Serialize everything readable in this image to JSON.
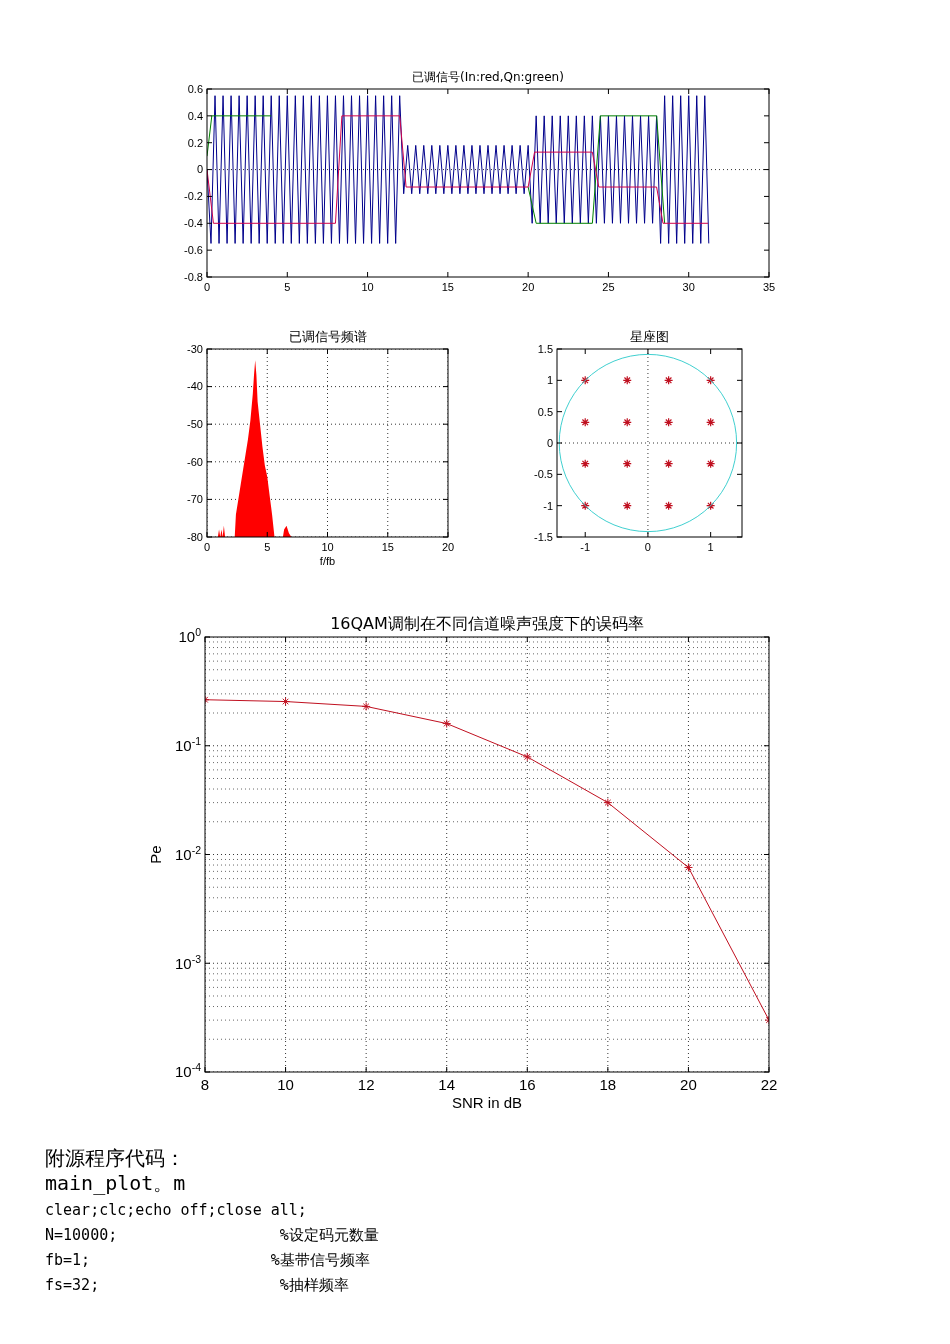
{
  "chart_data": [
    {
      "type": "line",
      "title": "已调信号(In:red,Qn:green)",
      "xlim": [
        0,
        35
      ],
      "xticks": [
        0,
        5,
        10,
        15,
        20,
        25,
        30,
        35
      ],
      "ylim": [
        -0.8,
        0.6
      ],
      "yticks": [
        -0.8,
        -0.6,
        -0.4,
        -0.2,
        0,
        0.2,
        0.4,
        0.6
      ],
      "ref_lines": [
        {
          "axis": "y",
          "value": 0,
          "line_style": "dotted",
          "color": "#000000"
        }
      ],
      "series": [
        {
          "color": "#00008b",
          "x": [
            0,
            0.25,
            0.5,
            0.75,
            1,
            1.25,
            1.5,
            1.75,
            2,
            2.25,
            2.5,
            2.75,
            3,
            3.25,
            3.5,
            3.75,
            4,
            4.25,
            4.5,
            4.75,
            5,
            5.25,
            5.5,
            5.75,
            6,
            6.25,
            6.5,
            6.75,
            7,
            7.25,
            7.5,
            7.75,
            8,
            8.25,
            8.5,
            8.75,
            9,
            9.25,
            9.5,
            9.75,
            10,
            10.25,
            10.5,
            10.75,
            11,
            11.25,
            11.5,
            11.75,
            12,
            12.25,
            12.5,
            12.75,
            13,
            13.25,
            13.5,
            13.75,
            14,
            14.25,
            14.5,
            14.75,
            15,
            15.25,
            15.5,
            15.75,
            16,
            16.25,
            16.5,
            16.75,
            17,
            17.25,
            17.5,
            17.75,
            18,
            18.25,
            18.5,
            18.75,
            19,
            19.25,
            19.5,
            19.75,
            20,
            20.25,
            20.5,
            20.75,
            21,
            21.25,
            21.5,
            21.75,
            22,
            22.25,
            22.5,
            22.75,
            23,
            23.25,
            23.5,
            23.75,
            24,
            24.25,
            24.5,
            24.75,
            25,
            25.25,
            25.5,
            25.75,
            26,
            26.25,
            26.5,
            26.75,
            27,
            27.25,
            27.5,
            27.75,
            28,
            28.25,
            28.5,
            28.75,
            29,
            29.25,
            29.5,
            29.75,
            30,
            30.25,
            30.5,
            30.75,
            31,
            31.25
          ],
          "values": [
            0,
            -0.55,
            0.55,
            -0.55,
            0.55,
            -0.55,
            0.55,
            -0.55,
            0.55,
            -0.55,
            0.55,
            -0.55,
            0.55,
            -0.55,
            0.55,
            -0.55,
            0.55,
            -0.55,
            0.55,
            -0.55,
            0.55,
            -0.55,
            0.55,
            -0.55,
            0.55,
            -0.55,
            0.55,
            -0.55,
            0.55,
            -0.55,
            0.55,
            -0.55,
            0.55,
            -0.55,
            0.55,
            -0.55,
            0.55,
            -0.55,
            0.55,
            -0.55,
            0.55,
            -0.55,
            0.55,
            -0.55,
            0.55,
            -0.55,
            0.55,
            -0.55,
            0.55,
            -0.18,
            0.18,
            -0.18,
            0.18,
            -0.18,
            0.18,
            -0.18,
            0.18,
            -0.18,
            0.18,
            -0.18,
            0.18,
            -0.18,
            0.18,
            -0.18,
            0.18,
            -0.18,
            0.18,
            -0.18,
            0.18,
            -0.18,
            0.18,
            -0.18,
            0.18,
            -0.18,
            0.18,
            -0.18,
            0.18,
            -0.18,
            0.18,
            -0.18,
            0.18,
            -0.4,
            0.4,
            -0.4,
            0.4,
            -0.4,
            0.4,
            -0.4,
            0.4,
            -0.4,
            0.4,
            -0.4,
            0.4,
            -0.4,
            0.4,
            -0.4,
            0.4,
            -0.4,
            0.4,
            -0.4,
            0.4,
            -0.4,
            0.4,
            -0.4,
            0.4,
            -0.4,
            0.4,
            -0.4,
            0.4,
            -0.4,
            0.4,
            -0.4,
            0.4,
            -0.55,
            0.55,
            -0.55,
            0.55,
            -0.55,
            0.55,
            -0.55,
            0.55,
            -0.55,
            0.55,
            -0.55,
            0.55,
            -0.55
          ]
        },
        {
          "color": "#008000",
          "x": [
            0,
            0.3,
            4.0,
            4.2,
            12.2,
            20.0,
            20.5,
            24.0,
            24.5,
            28.0,
            28.5
          ],
          "values": [
            0.1,
            0.4,
            0.4,
            null,
            null,
            -0.13,
            -0.4,
            -0.4,
            0.4,
            0.4,
            -0.4
          ]
        },
        {
          "color": "#d0004a",
          "x": [
            0,
            0.4,
            8.0,
            8.4,
            12.0,
            12.4,
            20.0,
            20.4,
            24.0,
            24.4,
            28.0,
            28.4,
            31.2
          ],
          "values": [
            0,
            -0.4,
            -0.4,
            0.4,
            0.4,
            -0.13,
            -0.13,
            0.13,
            0.13,
            -0.13,
            -0.13,
            -0.4,
            -0.4
          ]
        }
      ]
    },
    {
      "type": "area",
      "title": "已调信号频谱",
      "xlabel": "f/fb",
      "xlim": [
        0,
        20
      ],
      "xticks": [
        0,
        5,
        10,
        15,
        20
      ],
      "ylim": [
        -80,
        -30
      ],
      "yticks": [
        -80,
        -70,
        -60,
        -50,
        -40,
        -30
      ],
      "grid": true,
      "color": "#ff0000",
      "x": [
        0.9,
        1.0,
        1.1,
        1.2,
        1.3,
        1.4,
        1.5,
        1.6,
        2.3,
        2.4,
        2.6,
        2.8,
        3.0,
        3.2,
        3.4,
        3.6,
        3.8,
        3.9,
        4.0,
        4.1,
        4.2,
        4.4,
        4.6,
        4.8,
        5.0,
        5.2,
        5.4,
        5.6,
        6.3,
        6.4,
        6.6,
        6.8,
        7.0
      ],
      "values": [
        -80,
        -78,
        -80,
        -78,
        -80,
        -77,
        -80,
        -80,
        -80,
        -74,
        -70,
        -66,
        -62,
        -58,
        -54,
        -49,
        -42,
        -37,
        -33,
        -37,
        -44,
        -50,
        -56,
        -61,
        -64,
        -69,
        -74,
        -80,
        -80,
        -78,
        -77,
        -79,
        -80
      ]
    },
    {
      "type": "scatter",
      "title": "星座图",
      "xlim": [
        -1.45,
        1.5
      ],
      "xticks": [
        -1,
        0,
        1
      ],
      "ylim": [
        -1.5,
        1.5
      ],
      "yticks": [
        -1.5,
        -1,
        -0.5,
        0,
        0.5,
        1,
        1.5
      ],
      "ref_lines": [
        {
          "axis": "x",
          "value": 0,
          "line_style": "dotted",
          "color": "#000000"
        },
        {
          "axis": "y",
          "value": 0,
          "line_style": "dotted",
          "color": "#000000"
        }
      ],
      "series": [
        {
          "marker": "cross",
          "color": "#c01020",
          "x": [
            -1,
            -0.33,
            0.33,
            1,
            -1,
            -0.33,
            0.33,
            1,
            -1,
            -0.33,
            0.33,
            1,
            -1,
            -0.33,
            0.33,
            1
          ],
          "values": [
            1,
            1,
            1,
            1,
            0.33,
            0.33,
            0.33,
            0.33,
            -0.33,
            -0.33,
            -0.33,
            -0.33,
            -1,
            -1,
            -1,
            -1
          ]
        }
      ]
    },
    {
      "type": "line",
      "title": "16QAM调制在不同信道噪声强度下的误码率",
      "xlabel": "SNR in dB",
      "ylabel": "Pe",
      "log": "y",
      "grid": true,
      "marker": "cross",
      "color": "#c01020",
      "xlim": [
        8,
        22
      ],
      "xticks": [
        8,
        10,
        12,
        14,
        16,
        18,
        20,
        22
      ],
      "ylim": [
        0.0001,
        1
      ],
      "yticks": [
        {
          "value": 0.0001,
          "label": "10$^{-4}$"
        },
        {
          "value": 0.001,
          "label": "10$^{-3}$"
        },
        {
          "value": 0.01,
          "label": "10$^{-2}$"
        },
        {
          "value": 0.1,
          "label": "10$^{-1}$"
        },
        {
          "value": 1,
          "label": "10$^{0}$"
        }
      ],
      "x": [
        8,
        10,
        12,
        14,
        16,
        18,
        20,
        22
      ],
      "values": [
        0.265,
        0.255,
        0.23,
        0.16,
        0.079,
        0.03,
        0.0076,
        0.0003
      ]
    },
    {
      "type": "other",
      "annotations": [
        "附源程序代码：",
        "main_plot。m",
        "clear;clc;echo off;close all;",
        "N=10000;                  %设定码元数量",
        "fb=1;                    %基带信号频率",
        "fs=32;                    %抽样频率"
      ]
    }
  ]
}
